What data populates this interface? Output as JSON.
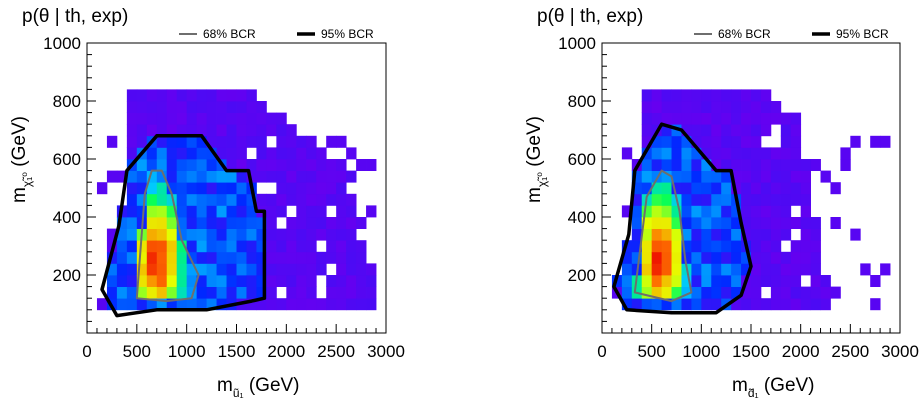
{
  "chart_data": [
    {
      "type": "heatmap",
      "title": "p(θ | th, exp)",
      "xlabel_base": "m",
      "xlabel_sub": "ũ₁",
      "xlabel_unit": "(GeV)",
      "ylabel_base": "m",
      "ylabel_sub": "χ̃₁⁰",
      "ylabel_unit": "(GeV)",
      "xlim": [
        0,
        3000
      ],
      "ylim": [
        0,
        1000
      ],
      "xticks": [
        0,
        500,
        1000,
        1500,
        2000,
        2500,
        3000
      ],
      "yticks": [
        200,
        400,
        600,
        800,
        1000
      ],
      "xtick_labels": [
        "0",
        "500",
        "1000",
        "1500",
        "2000",
        "2500",
        "3000"
      ],
      "ytick_labels": [
        "200",
        "400",
        "600",
        "800",
        "1000"
      ],
      "legend": {
        "placement": "top-right",
        "entries": [
          {
            "label": "68% BCR",
            "color": "#6e6e6e"
          },
          {
            "label": "95% BCR",
            "color": "#000000"
          }
        ]
      },
      "density_peak": {
        "x": 700,
        "y": 250
      },
      "bcr68": [
        [
          500,
          120
        ],
        [
          580,
          480
        ],
        [
          650,
          560
        ],
        [
          750,
          560
        ],
        [
          850,
          480
        ],
        [
          950,
          320
        ],
        [
          1120,
          200
        ],
        [
          1050,
          120
        ],
        [
          800,
          110
        ],
        [
          500,
          120
        ]
      ],
      "bcr95": [
        [
          150,
          150
        ],
        [
          320,
          370
        ],
        [
          400,
          560
        ],
        [
          700,
          680
        ],
        [
          1150,
          680
        ],
        [
          1400,
          560
        ],
        [
          1620,
          560
        ],
        [
          1700,
          420
        ],
        [
          1780,
          420
        ],
        [
          1780,
          120
        ],
        [
          1650,
          110
        ],
        [
          1200,
          80
        ],
        [
          700,
          80
        ],
        [
          300,
          60
        ],
        [
          150,
          150
        ]
      ]
    },
    {
      "type": "heatmap",
      "title": "p(θ | th, exp)",
      "xlabel_base": "m",
      "xlabel_sub": "d̃₁",
      "xlabel_unit": "(GeV)",
      "ylabel_base": "m",
      "ylabel_sub": "χ̃₁⁰",
      "ylabel_unit": "(GeV)",
      "xlim": [
        0,
        3000
      ],
      "ylim": [
        0,
        1000
      ],
      "xticks": [
        0,
        500,
        1000,
        1500,
        2000,
        2500,
        3000
      ],
      "yticks": [
        200,
        400,
        600,
        800,
        1000
      ],
      "xtick_labels": [
        "0",
        "500",
        "1000",
        "1500",
        "2000",
        "2500",
        "3000"
      ],
      "ytick_labels": [
        "200",
        "400",
        "600",
        "800",
        "1000"
      ],
      "legend": {
        "placement": "top-right",
        "entries": [
          {
            "label": "68% BCR",
            "color": "#6e6e6e"
          },
          {
            "label": "95% BCR",
            "color": "#000000"
          }
        ]
      },
      "density_peak": {
        "x": 580,
        "y": 260
      },
      "bcr68": [
        [
          330,
          140
        ],
        [
          450,
          470
        ],
        [
          600,
          560
        ],
        [
          700,
          540
        ],
        [
          780,
          420
        ],
        [
          840,
          250
        ],
        [
          900,
          140
        ],
        [
          700,
          110
        ],
        [
          330,
          140
        ]
      ],
      "bcr95": [
        [
          120,
          160
        ],
        [
          270,
          340
        ],
        [
          330,
          560
        ],
        [
          600,
          720
        ],
        [
          800,
          700
        ],
        [
          1150,
          560
        ],
        [
          1300,
          560
        ],
        [
          1400,
          380
        ],
        [
          1500,
          230
        ],
        [
          1400,
          130
        ],
        [
          1150,
          70
        ],
        [
          700,
          70
        ],
        [
          250,
          80
        ],
        [
          120,
          160
        ]
      ]
    }
  ]
}
